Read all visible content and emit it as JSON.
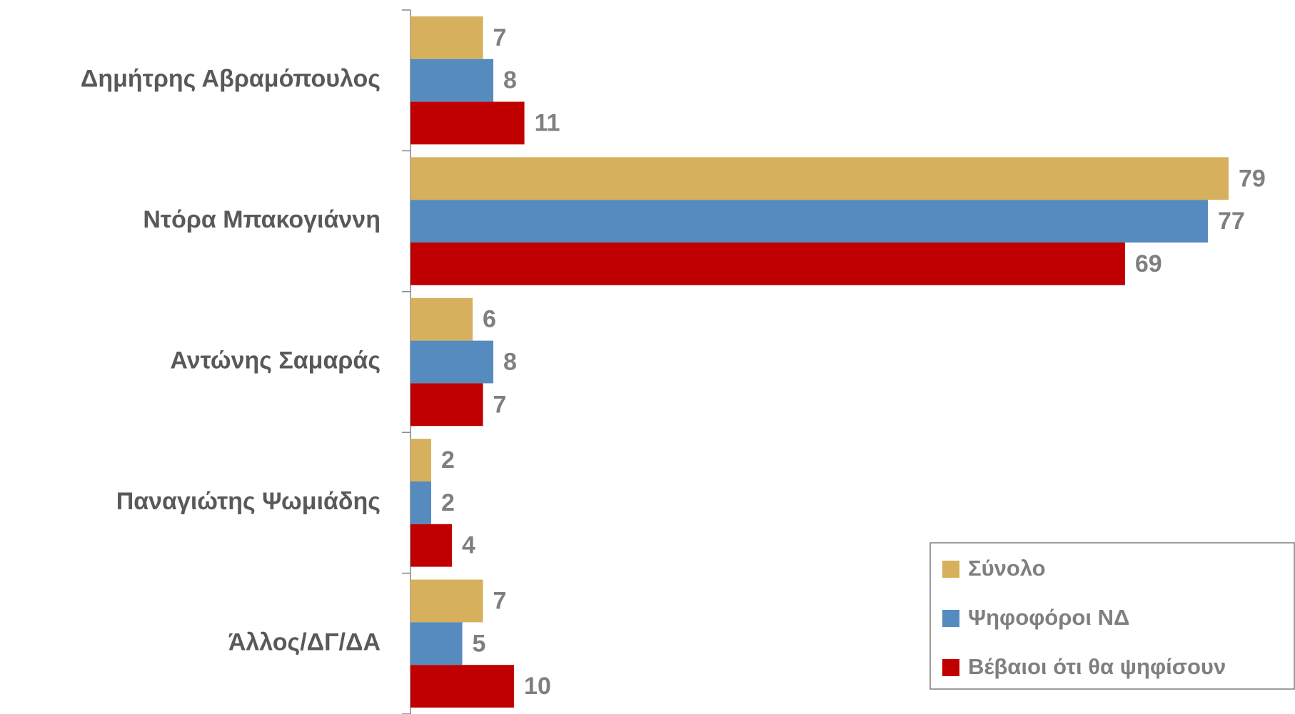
{
  "chart_data": {
    "type": "bar",
    "orientation": "horizontal",
    "categories": [
      "Δημήτρης Αβραμόπουλος",
      "Ντόρα Μπακογιάννη",
      "Αντώνης Σαμαράς",
      "Παναγιώτης Ψωμιάδης",
      "Άλλος/ΔΓ/ΔΑ"
    ],
    "series": [
      {
        "name": "Σύνολο",
        "color": "#d6b05c",
        "values": [
          7,
          79,
          6,
          2,
          7
        ]
      },
      {
        "name": "Ψηφοφόροι ΝΔ",
        "color": "#568bbf",
        "values": [
          8,
          77,
          8,
          2,
          5
        ]
      },
      {
        "name": "Βέβαιοι ότι θα ψηφίσουν",
        "color": "#c00000",
        "values": [
          11,
          69,
          7,
          4,
          10
        ]
      }
    ],
    "xlim": [
      0,
      85
    ],
    "legend": "lower right"
  }
}
